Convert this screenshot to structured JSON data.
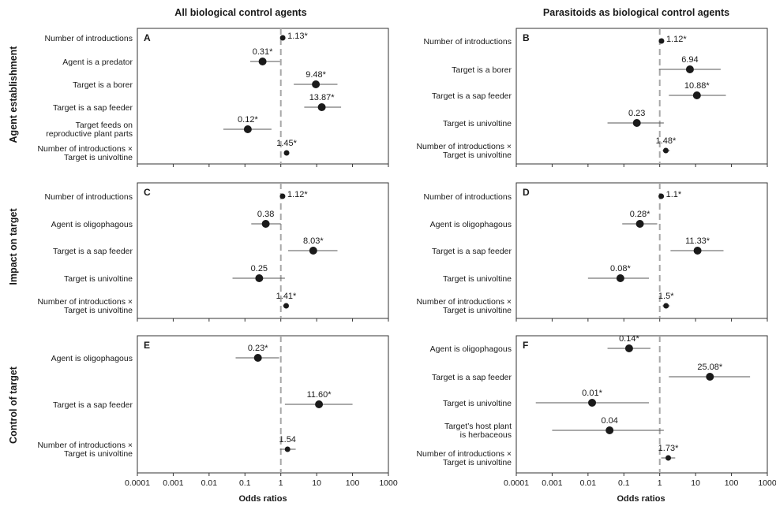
{
  "figure": {
    "column_titles": [
      "All biological control agents",
      "Parasitoids as biological control agents"
    ],
    "row_titles": [
      "Agent establishment",
      "Impact on target",
      "Control of target"
    ],
    "xlabel": "Odds ratios",
    "x_tick_labels": [
      "0.0001",
      "0.001",
      "0.01",
      "0.1",
      "1",
      "10",
      "100",
      "1000"
    ]
  },
  "chart_data": [
    {
      "type": "scatter",
      "panel": "A",
      "row": "Agent establishment",
      "column": "All biological control agents",
      "x_scale": "log10",
      "xlim": [
        0.0001,
        1000
      ],
      "reference_line": 1,
      "predictors": [
        "Number of introductions",
        "Agent is a predator",
        "Target is a borer",
        "Target is a sap feeder",
        "Target feeds on\nreproductive plant parts",
        "Number of introductions ×\nTarget is univoltine"
      ],
      "labels": [
        "1.13*",
        "0.31*",
        "9.48*",
        "13.87*",
        "0.12*",
        "1.45*"
      ],
      "odds_ratios": [
        1.13,
        0.31,
        9.48,
        13.87,
        0.12,
        1.45
      ],
      "ci_low": [
        1.08,
        0.14,
        2.3,
        4.5,
        0.025,
        1.25
      ],
      "ci_high": [
        1.18,
        0.95,
        38,
        48,
        0.55,
        1.7
      ]
    },
    {
      "type": "scatter",
      "panel": "B",
      "row": "Agent establishment",
      "column": "Parasitoids as biological control agents",
      "x_scale": "log10",
      "xlim": [
        0.0001,
        1000
      ],
      "reference_line": 1,
      "predictors": [
        "Number of introductions",
        "Target is a borer",
        "Target is a sap feeder",
        "Target is univoltine",
        "Number of introductions ×\nTarget is univoltine"
      ],
      "labels": [
        "1.12*",
        "6.94",
        "10.88*",
        "0.23",
        "1.48*"
      ],
      "odds_ratios": [
        1.12,
        6.94,
        10.88,
        0.23,
        1.48
      ],
      "ci_low": [
        1.05,
        0.95,
        1.8,
        0.035,
        1.2
      ],
      "ci_high": [
        1.2,
        50,
        70,
        1.3,
        1.9
      ]
    },
    {
      "type": "scatter",
      "panel": "C",
      "row": "Impact on target",
      "column": "All biological control agents",
      "x_scale": "log10",
      "xlim": [
        0.0001,
        1000
      ],
      "reference_line": 1,
      "predictors": [
        "Number of introductions",
        "Agent is oligophagous",
        "Target is a sap feeder",
        "Target is univoltine",
        "Number of introductions ×\nTarget is univoltine"
      ],
      "labels": [
        "1.12*",
        "0.38",
        "8.03*",
        "0.25",
        "1.41*"
      ],
      "odds_ratios": [
        1.12,
        0.38,
        8.03,
        0.25,
        1.41
      ],
      "ci_low": [
        1.06,
        0.15,
        1.6,
        0.045,
        1.15
      ],
      "ci_high": [
        1.19,
        1.0,
        38,
        1.3,
        1.7
      ]
    },
    {
      "type": "scatter",
      "panel": "D",
      "row": "Impact on target",
      "column": "Parasitoids as biological control agents",
      "x_scale": "log10",
      "xlim": [
        0.0001,
        1000
      ],
      "reference_line": 1,
      "predictors": [
        "Number of introductions",
        "Agent is oligophagous",
        "Target is a sap feeder",
        "Target is univoltine",
        "Number of introductions ×\nTarget is univoltine"
      ],
      "labels": [
        "1.1*",
        "0.28*",
        "11.33*",
        "0.08*",
        "1.5*"
      ],
      "odds_ratios": [
        1.1,
        0.28,
        11.33,
        0.08,
        1.5
      ],
      "ci_low": [
        1.03,
        0.09,
        2.0,
        0.01,
        1.2
      ],
      "ci_high": [
        1.18,
        0.85,
        60,
        0.5,
        1.9
      ]
    },
    {
      "type": "scatter",
      "panel": "E",
      "row": "Control of target",
      "column": "All biological control agents",
      "x_scale": "log10",
      "xlim": [
        0.0001,
        1000
      ],
      "reference_line": 1,
      "predictors": [
        "Agent is oligophagous",
        "Target is a sap feeder",
        "Number of introductions ×\nTarget is univoltine"
      ],
      "labels": [
        "0.23*",
        "11.60*",
        "1.54"
      ],
      "odds_ratios": [
        0.23,
        11.6,
        1.54
      ],
      "ci_low": [
        0.055,
        1.3,
        0.95
      ],
      "ci_high": [
        0.9,
        100,
        2.6
      ]
    },
    {
      "type": "scatter",
      "panel": "F",
      "row": "Control of target",
      "column": "Parasitoids as biological control agents",
      "x_scale": "log10",
      "xlim": [
        0.0001,
        1000
      ],
      "reference_line": 1,
      "predictors": [
        "Agent is oligophagous",
        "Target is a sap feeder",
        "Target is univoltine",
        "Target’s host plant\nis herbaceous",
        "Number of introductions ×\nTarget is univoltine"
      ],
      "labels": [
        "0.14*",
        "25.08*",
        "0.01*",
        "0.04",
        "1.73*"
      ],
      "odds_ratios": [
        0.14,
        25.08,
        0.013,
        0.04,
        1.73
      ],
      "ci_low": [
        0.035,
        1.8,
        0.00035,
        0.001,
        1.1
      ],
      "ci_high": [
        0.55,
        330,
        0.5,
        1.3,
        2.7
      ]
    }
  ]
}
